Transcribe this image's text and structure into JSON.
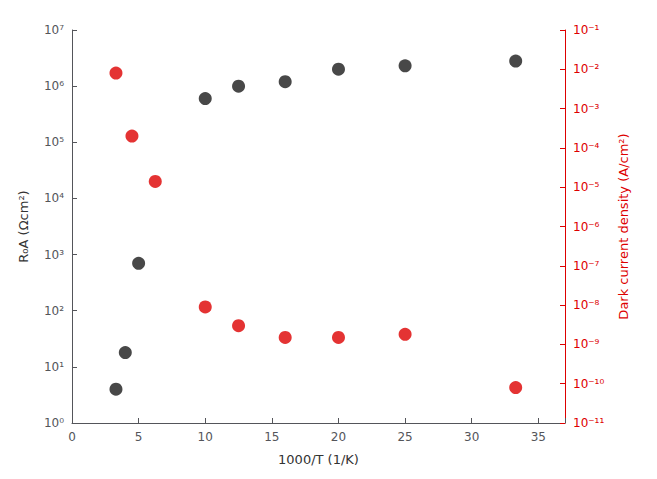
{
  "chart_data": {
    "type": "scatter",
    "xlabel": "1000/T (1/K)",
    "ylabel": "R₀A (Ωcm²)",
    "y2label": "Dark current density (A/cm²)",
    "xlim": [
      0,
      37
    ],
    "xticks": [
      0,
      5,
      10,
      15,
      20,
      25,
      30,
      35
    ],
    "ylim": [
      1,
      10000000.0
    ],
    "yticks": [
      {
        "value": 1,
        "label": "10⁰"
      },
      {
        "value": 10,
        "label": "10¹"
      },
      {
        "value": 100,
        "label": "10²"
      },
      {
        "value": 1000,
        "label": "10³"
      },
      {
        "value": 10000,
        "label": "10⁴"
      },
      {
        "value": 100000,
        "label": "10⁵"
      },
      {
        "value": 1000000,
        "label": "10⁶"
      },
      {
        "value": 10000000,
        "label": "10⁷"
      }
    ],
    "y2lim": [
      1e-11,
      0.1
    ],
    "y2ticks": [
      {
        "value": 1e-11,
        "label": "10⁻¹¹"
      },
      {
        "value": 1e-10,
        "label": "10⁻¹⁰"
      },
      {
        "value": 1e-09,
        "label": "10⁻⁹"
      },
      {
        "value": 1e-08,
        "label": "10⁻⁸"
      },
      {
        "value": 1e-07,
        "label": "10⁻⁷"
      },
      {
        "value": 1e-06,
        "label": "10⁻⁶"
      },
      {
        "value": 1e-05,
        "label": "10⁻⁵"
      },
      {
        "value": 0.0001,
        "label": "10⁻⁴"
      },
      {
        "value": 0.001,
        "label": "10⁻³"
      },
      {
        "value": 0.01,
        "label": "10⁻²"
      },
      {
        "value": 0.1,
        "label": "10⁻¹"
      }
    ],
    "log": "y",
    "grid": false,
    "marker": "circle",
    "series": [
      {
        "x": [
          3.3,
          4.0,
          5.0,
          10.0,
          12.5,
          16.0,
          20.0,
          25.0,
          33.3
        ],
        "values": [
          4.0,
          18.0,
          700.0,
          600000.0,
          1000000.0,
          1200000.0,
          2000000.0,
          2300000.0,
          2800000.0
        ],
        "color": "#1a1a1a"
      },
      {
        "x": [
          3.3,
          4.5,
          6.25,
          10.0,
          12.5,
          16.0,
          20.0,
          25.0,
          33.3
        ],
        "values": [
          0.008,
          0.0002,
          1.4e-05,
          9e-09,
          3e-09,
          1.5e-09,
          1.5e-09,
          1.8e-09,
          8e-11
        ],
        "color": "#dd0000",
        "axis": "y2"
      }
    ]
  }
}
